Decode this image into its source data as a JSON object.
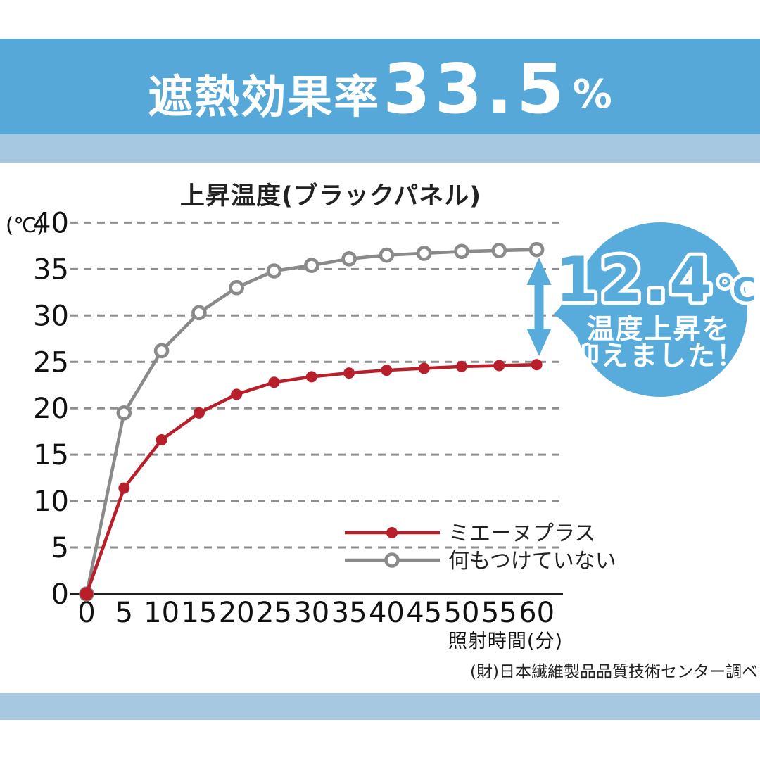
{
  "header": {
    "title_prefix": "遮熱効果率",
    "title_value": "33.5",
    "title_unit": "%"
  },
  "chart_data": {
    "type": "line",
    "title": "上昇温度(ブラックパネル)",
    "y_axis_unit": "(℃)",
    "xlabel": "照射時間(分)",
    "x": [
      0,
      5,
      10,
      15,
      20,
      25,
      30,
      35,
      40,
      45,
      50,
      55,
      60
    ],
    "yticks": [
      0,
      5,
      10,
      15,
      20,
      25,
      30,
      35,
      40
    ],
    "ylim": [
      0,
      40
    ],
    "xlim": [
      0,
      60
    ],
    "grid": "horizontal-dashed",
    "legend_position": "inside-bottom-right",
    "series": [
      {
        "name": "ミエーヌプラス",
        "color": "#b81f2b",
        "marker": "filled-circle",
        "values": [
          0,
          11.4,
          16.6,
          19.5,
          21.5,
          22.8,
          23.4,
          23.8,
          24.1,
          24.3,
          24.5,
          24.6,
          24.7
        ]
      },
      {
        "name": "何もつけていない",
        "color": "#8a8a8a",
        "marker": "open-circle",
        "values": [
          0,
          19.5,
          26.2,
          30.3,
          33.0,
          34.8,
          35.4,
          36.1,
          36.5,
          36.7,
          36.9,
          37.0,
          37.1
        ]
      }
    ]
  },
  "callout": {
    "value": "12.4",
    "unit": "℃",
    "line1": "温度上昇を",
    "line2": "抑えました！",
    "arrow": "double-headed-vertical"
  },
  "footer": {
    "source": "(財)日本繊維製品品質技術センター調べ"
  },
  "colors": {
    "band_blue": "#55a8d8",
    "band_light_blue": "#a6c8e0",
    "bubble_blue": "#58acdc",
    "series_red": "#b81f2b",
    "series_gray": "#8a8a8a",
    "axis": "#1f1f1f"
  }
}
